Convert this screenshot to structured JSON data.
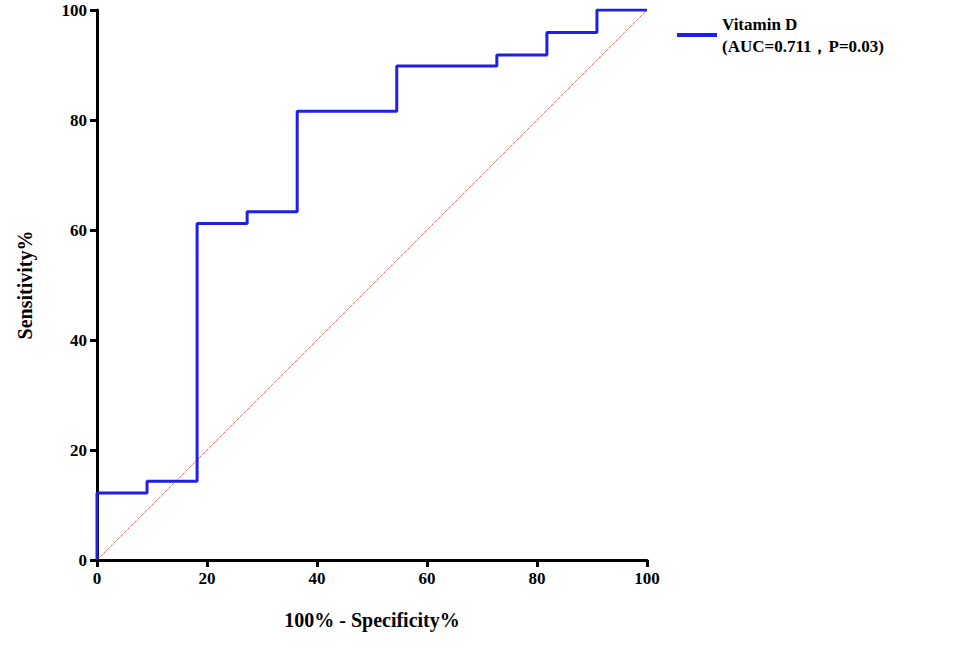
{
  "chart_data": {
    "type": "line",
    "x_label": "100% - Specificity%",
    "y_label": "Sensitivity%",
    "xlim": [
      0,
      100
    ],
    "xticks": [
      0,
      20,
      40,
      60,
      80,
      100
    ],
    "ylim": [
      0,
      100
    ],
    "yticks": [
      0,
      20,
      40,
      60,
      80,
      100
    ],
    "grid": false,
    "legend": "top-right",
    "series": [
      {
        "name": "Vitamin D\n(AUC=0.711，P=0.03)",
        "color": "#1f1fe6",
        "line_style": "solid",
        "x": [
          0,
          0,
          9.1,
          9.1,
          18.2,
          18.2,
          27.3,
          27.3,
          36.4,
          36.4,
          54.5,
          54.5,
          72.7,
          72.7,
          81.8,
          81.8,
          90.9,
          90.9,
          100
        ],
        "values": [
          0,
          12.2,
          12.2,
          14.3,
          14.3,
          61.2,
          61.2,
          63.3,
          63.3,
          81.6,
          81.6,
          89.8,
          89.8,
          91.8,
          91.8,
          95.9,
          95.9,
          100,
          100
        ]
      },
      {
        "color": "#e0301e",
        "line_style": "dotted",
        "x": [
          0,
          100
        ],
        "values": [
          0,
          100
        ]
      }
    ]
  }
}
